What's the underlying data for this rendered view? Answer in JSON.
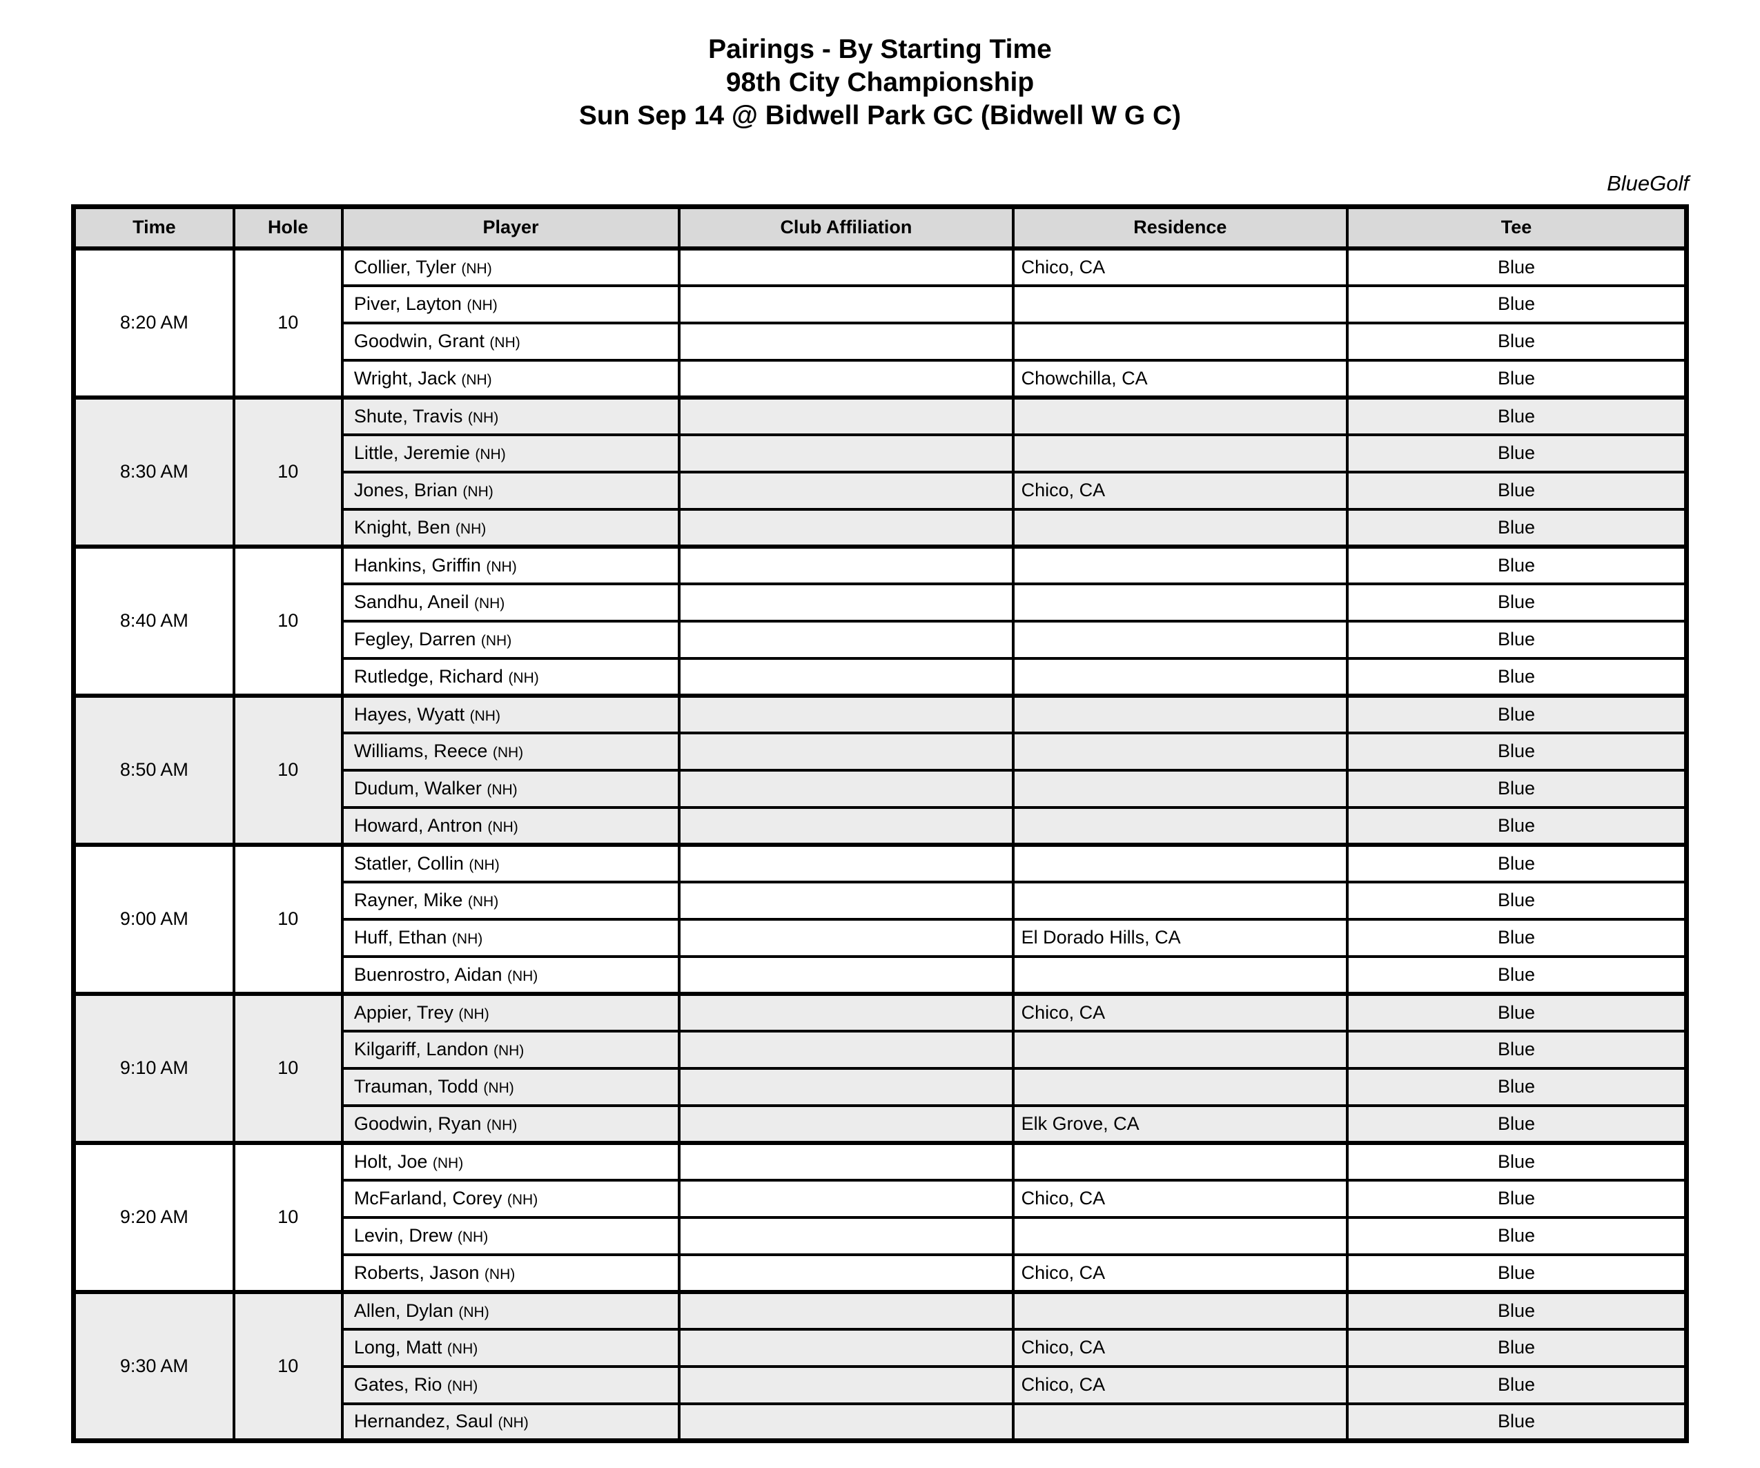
{
  "page": {
    "title_line1": "Pairings - By Starting Time",
    "title_line2": "98th City Championship",
    "title_line3": "Sun Sep 14 @ Bidwell Park GC (Bidwell W G C)",
    "brand": "BlueGolf"
  },
  "colors": {
    "header_bg": "#d9d9d9",
    "alt_group_bg": "#ececec",
    "border": "#000000",
    "text": "#000000"
  },
  "table": {
    "columns": [
      "Time",
      "Hole",
      "Player",
      "Club Affiliation",
      "Residence",
      "Tee"
    ],
    "groups": [
      {
        "time": "8:20 AM",
        "hole": "10",
        "players": [
          {
            "name": "Collier, Tyler",
            "tag": "(NH)",
            "club": "",
            "residence": "Chico, CA",
            "tee": "Blue"
          },
          {
            "name": "Piver, Layton",
            "tag": "(NH)",
            "club": "",
            "residence": "",
            "tee": "Blue"
          },
          {
            "name": "Goodwin, Grant",
            "tag": "(NH)",
            "club": "",
            "residence": "",
            "tee": "Blue"
          },
          {
            "name": "Wright, Jack",
            "tag": "(NH)",
            "club": "",
            "residence": "Chowchilla, CA",
            "tee": "Blue"
          }
        ]
      },
      {
        "time": "8:30 AM",
        "hole": "10",
        "players": [
          {
            "name": "Shute, Travis",
            "tag": "(NH)",
            "club": "",
            "residence": "",
            "tee": "Blue"
          },
          {
            "name": "Little, Jeremie",
            "tag": "(NH)",
            "club": "",
            "residence": "",
            "tee": "Blue"
          },
          {
            "name": "Jones, Brian",
            "tag": "(NH)",
            "club": "",
            "residence": "Chico, CA",
            "tee": "Blue"
          },
          {
            "name": "Knight, Ben",
            "tag": "(NH)",
            "club": "",
            "residence": "",
            "tee": "Blue"
          }
        ]
      },
      {
        "time": "8:40 AM",
        "hole": "10",
        "players": [
          {
            "name": "Hankins, Griffin",
            "tag": "(NH)",
            "club": "",
            "residence": "",
            "tee": "Blue"
          },
          {
            "name": "Sandhu, Aneil",
            "tag": "(NH)",
            "club": "",
            "residence": "",
            "tee": "Blue"
          },
          {
            "name": "Fegley, Darren",
            "tag": "(NH)",
            "club": "",
            "residence": "",
            "tee": "Blue"
          },
          {
            "name": "Rutledge, Richard",
            "tag": "(NH)",
            "club": "",
            "residence": "",
            "tee": "Blue"
          }
        ]
      },
      {
        "time": "8:50 AM",
        "hole": "10",
        "players": [
          {
            "name": "Hayes, Wyatt",
            "tag": "(NH)",
            "club": "",
            "residence": "",
            "tee": "Blue"
          },
          {
            "name": "Williams, Reece",
            "tag": "(NH)",
            "club": "",
            "residence": "",
            "tee": "Blue"
          },
          {
            "name": "Dudum, Walker",
            "tag": "(NH)",
            "club": "",
            "residence": "",
            "tee": "Blue"
          },
          {
            "name": "Howard, Antron",
            "tag": "(NH)",
            "club": "",
            "residence": "",
            "tee": "Blue"
          }
        ]
      },
      {
        "time": "9:00 AM",
        "hole": "10",
        "players": [
          {
            "name": "Statler, Collin",
            "tag": "(NH)",
            "club": "",
            "residence": "",
            "tee": "Blue"
          },
          {
            "name": "Rayner, Mike",
            "tag": "(NH)",
            "club": "",
            "residence": "",
            "tee": "Blue"
          },
          {
            "name": "Huff, Ethan",
            "tag": "(NH)",
            "club": "",
            "residence": "El Dorado Hills, CA",
            "tee": "Blue"
          },
          {
            "name": "Buenrostro, Aidan",
            "tag": "(NH)",
            "club": "",
            "residence": "",
            "tee": "Blue"
          }
        ]
      },
      {
        "time": "9:10 AM",
        "hole": "10",
        "players": [
          {
            "name": "Appier, Trey",
            "tag": "(NH)",
            "club": "",
            "residence": "Chico, CA",
            "tee": "Blue"
          },
          {
            "name": "Kilgariff, Landon",
            "tag": "(NH)",
            "club": "",
            "residence": "",
            "tee": "Blue"
          },
          {
            "name": "Trauman, Todd",
            "tag": "(NH)",
            "club": "",
            "residence": "",
            "tee": "Blue"
          },
          {
            "name": "Goodwin, Ryan",
            "tag": "(NH)",
            "club": "",
            "residence": "Elk Grove, CA",
            "tee": "Blue"
          }
        ]
      },
      {
        "time": "9:20 AM",
        "hole": "10",
        "players": [
          {
            "name": "Holt, Joe",
            "tag": "(NH)",
            "club": "",
            "residence": "",
            "tee": "Blue"
          },
          {
            "name": "McFarland, Corey",
            "tag": "(NH)",
            "club": "",
            "residence": "Chico, CA",
            "tee": "Blue"
          },
          {
            "name": "Levin, Drew",
            "tag": "(NH)",
            "club": "",
            "residence": "",
            "tee": "Blue"
          },
          {
            "name": "Roberts, Jason",
            "tag": "(NH)",
            "club": "",
            "residence": "Chico, CA",
            "tee": "Blue"
          }
        ]
      },
      {
        "time": "9:30 AM",
        "hole": "10",
        "players": [
          {
            "name": "Allen, Dylan",
            "tag": "(NH)",
            "club": "",
            "residence": "",
            "tee": "Blue"
          },
          {
            "name": "Long, Matt",
            "tag": "(NH)",
            "club": "",
            "residence": "Chico, CA",
            "tee": "Blue"
          },
          {
            "name": "Gates, Rio",
            "tag": "(NH)",
            "club": "",
            "residence": "Chico, CA",
            "tee": "Blue"
          },
          {
            "name": "Hernandez, Saul",
            "tag": "(NH)",
            "club": "",
            "residence": "",
            "tee": "Blue"
          }
        ]
      }
    ]
  }
}
